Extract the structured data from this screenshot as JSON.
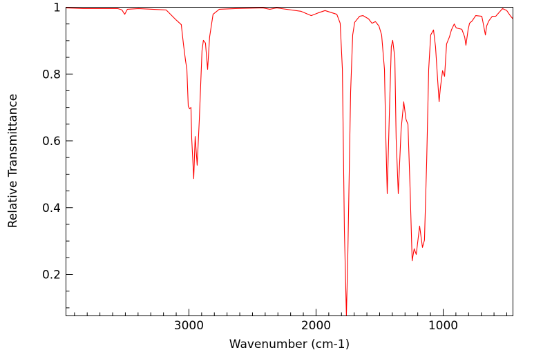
{
  "chart_data": {
    "type": "line",
    "title": "",
    "xlabel": "Wavenumber (cm-1)",
    "ylabel": "Relative Transmittance",
    "xlim": [
      3967,
      451
    ],
    "ylim": [
      0.076,
      1.0
    ],
    "x_reversed": true,
    "grid": false,
    "legend": "none",
    "x_ticks": [
      3000,
      2000,
      1000
    ],
    "x_tick_labels": [
      "3000",
      "2000",
      "1000"
    ],
    "x_minor_step": 100,
    "y_ticks": [
      0.2,
      0.4,
      0.6,
      0.8,
      1
    ],
    "y_tick_labels": [
      "0.2",
      "0.4",
      "0.6",
      "0.8",
      "1"
    ],
    "y_minor_step": 0.05,
    "series": [
      {
        "name": "spectrum",
        "color": "#ff0000",
        "points": [
          [
            3967,
            0.998
          ],
          [
            3832,
            0.996
          ],
          [
            3560,
            0.996
          ],
          [
            3527,
            0.992
          ],
          [
            3505,
            0.979
          ],
          [
            3484,
            0.994
          ],
          [
            3397,
            0.996
          ],
          [
            3179,
            0.992
          ],
          [
            3109,
            0.965
          ],
          [
            3060,
            0.948
          ],
          [
            3043,
            0.89
          ],
          [
            3027,
            0.841
          ],
          [
            3016,
            0.814
          ],
          [
            3005,
            0.704
          ],
          [
            2995,
            0.696
          ],
          [
            2984,
            0.7
          ],
          [
            2978,
            0.607
          ],
          [
            2962,
            0.487
          ],
          [
            2951,
            0.613
          ],
          [
            2935,
            0.527
          ],
          [
            2918,
            0.663
          ],
          [
            2897,
            0.87
          ],
          [
            2886,
            0.901
          ],
          [
            2870,
            0.893
          ],
          [
            2853,
            0.814
          ],
          [
            2837,
            0.911
          ],
          [
            2810,
            0.979
          ],
          [
            2761,
            0.994
          ],
          [
            2636,
            0.996
          ],
          [
            2418,
            0.998
          ],
          [
            2364,
            0.994
          ],
          [
            2310,
            0.998
          ],
          [
            2120,
            0.988
          ],
          [
            2038,
            0.975
          ],
          [
            1984,
            0.983
          ],
          [
            1929,
            0.99
          ],
          [
            1837,
            0.979
          ],
          [
            1810,
            0.952
          ],
          [
            1793,
            0.814
          ],
          [
            1777,
            0.332
          ],
          [
            1761,
            0.076
          ],
          [
            1750,
            0.262
          ],
          [
            1728,
            0.746
          ],
          [
            1712,
            0.917
          ],
          [
            1696,
            0.955
          ],
          [
            1658,
            0.973
          ],
          [
            1630,
            0.975
          ],
          [
            1587,
            0.965
          ],
          [
            1560,
            0.952
          ],
          [
            1533,
            0.957
          ],
          [
            1505,
            0.944
          ],
          [
            1484,
            0.917
          ],
          [
            1462,
            0.814
          ],
          [
            1451,
            0.607
          ],
          [
            1440,
            0.442
          ],
          [
            1424,
            0.675
          ],
          [
            1408,
            0.882
          ],
          [
            1397,
            0.901
          ],
          [
            1380,
            0.849
          ],
          [
            1370,
            0.607
          ],
          [
            1353,
            0.442
          ],
          [
            1331,
            0.634
          ],
          [
            1310,
            0.717
          ],
          [
            1293,
            0.665
          ],
          [
            1277,
            0.649
          ],
          [
            1261,
            0.469
          ],
          [
            1244,
            0.241
          ],
          [
            1228,
            0.277
          ],
          [
            1212,
            0.26
          ],
          [
            1185,
            0.345
          ],
          [
            1163,
            0.281
          ],
          [
            1147,
            0.303
          ],
          [
            1130,
            0.539
          ],
          [
            1114,
            0.814
          ],
          [
            1098,
            0.917
          ],
          [
            1076,
            0.932
          ],
          [
            1060,
            0.882
          ],
          [
            1043,
            0.779
          ],
          [
            1032,
            0.717
          ],
          [
            1022,
            0.758
          ],
          [
            1005,
            0.81
          ],
          [
            989,
            0.793
          ],
          [
            973,
            0.89
          ],
          [
            951,
            0.911
          ],
          [
            935,
            0.932
          ],
          [
            913,
            0.95
          ],
          [
            897,
            0.938
          ],
          [
            853,
            0.934
          ],
          [
            831,
            0.911
          ],
          [
            821,
            0.886
          ],
          [
            804,
            0.932
          ],
          [
            793,
            0.952
          ],
          [
            772,
            0.959
          ],
          [
            744,
            0.975
          ],
          [
            696,
            0.973
          ],
          [
            685,
            0.952
          ],
          [
            668,
            0.917
          ],
          [
            658,
            0.944
          ],
          [
            641,
            0.959
          ],
          [
            614,
            0.973
          ],
          [
            587,
            0.973
          ],
          [
            533,
            0.996
          ],
          [
            500,
            0.99
          ],
          [
            473,
            0.975
          ],
          [
            451,
            0.965
          ]
        ]
      }
    ]
  }
}
